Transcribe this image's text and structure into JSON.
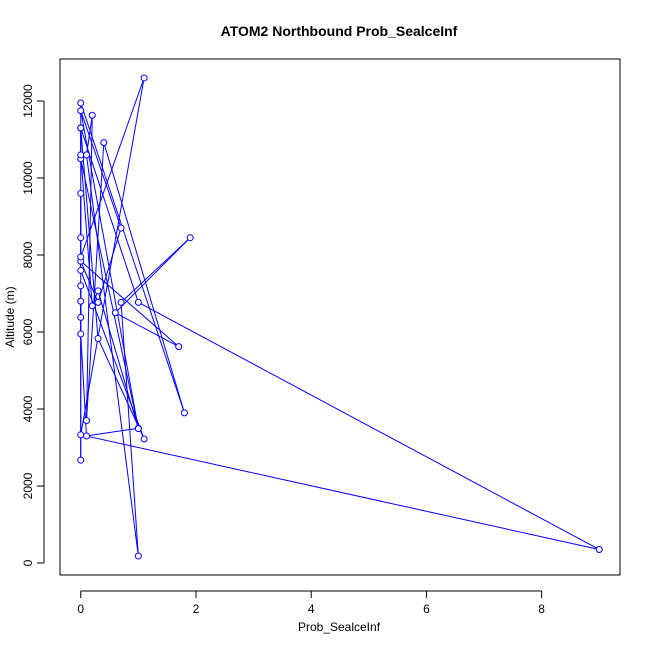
{
  "chart_data": {
    "type": "line",
    "title": "ATOM2 Northbound Prob_SealceInf",
    "xlabel": "Prob_SealceInf",
    "ylabel": "Altitude (m)",
    "xlim": [
      -0.36,
      9.36
    ],
    "ylim": [
      -312,
      13092
    ],
    "xticks": [
      0,
      2,
      4,
      6,
      8
    ],
    "yticks": [
      0,
      2000,
      4000,
      6000,
      8000,
      10000,
      12000
    ],
    "grid": false,
    "legend": "none",
    "series": [
      {
        "color": "#0000ff",
        "marker": "open-circle",
        "x": [
          0,
          0,
          1.0,
          0.1,
          0,
          0,
          0,
          0,
          0,
          0,
          0,
          1.1,
          0.3,
          0,
          0,
          0.2,
          0.3,
          1.0,
          0,
          0.7,
          0.3,
          0,
          1.7,
          0.6,
          1.9,
          0.7,
          1.0,
          0.1,
          0.2,
          0.1,
          0.4,
          1.8,
          0,
          0,
          0,
          1.1,
          0,
          9.0,
          1.0,
          0
        ],
        "y": [
          11300,
          10500,
          3500,
          3300,
          5950,
          7200,
          6380,
          6800,
          2670,
          9600,
          7600,
          3220,
          5830,
          11300,
          10600,
          6680,
          7070,
          3490,
          11750,
          8700,
          6770,
          7840,
          5620,
          6500,
          8450,
          6770,
          180,
          10600,
          11630,
          3700,
          10920,
          3900,
          11950,
          8450,
          7950,
          12600,
          3330,
          350,
          6770,
          11300
        ]
      }
    ]
  }
}
